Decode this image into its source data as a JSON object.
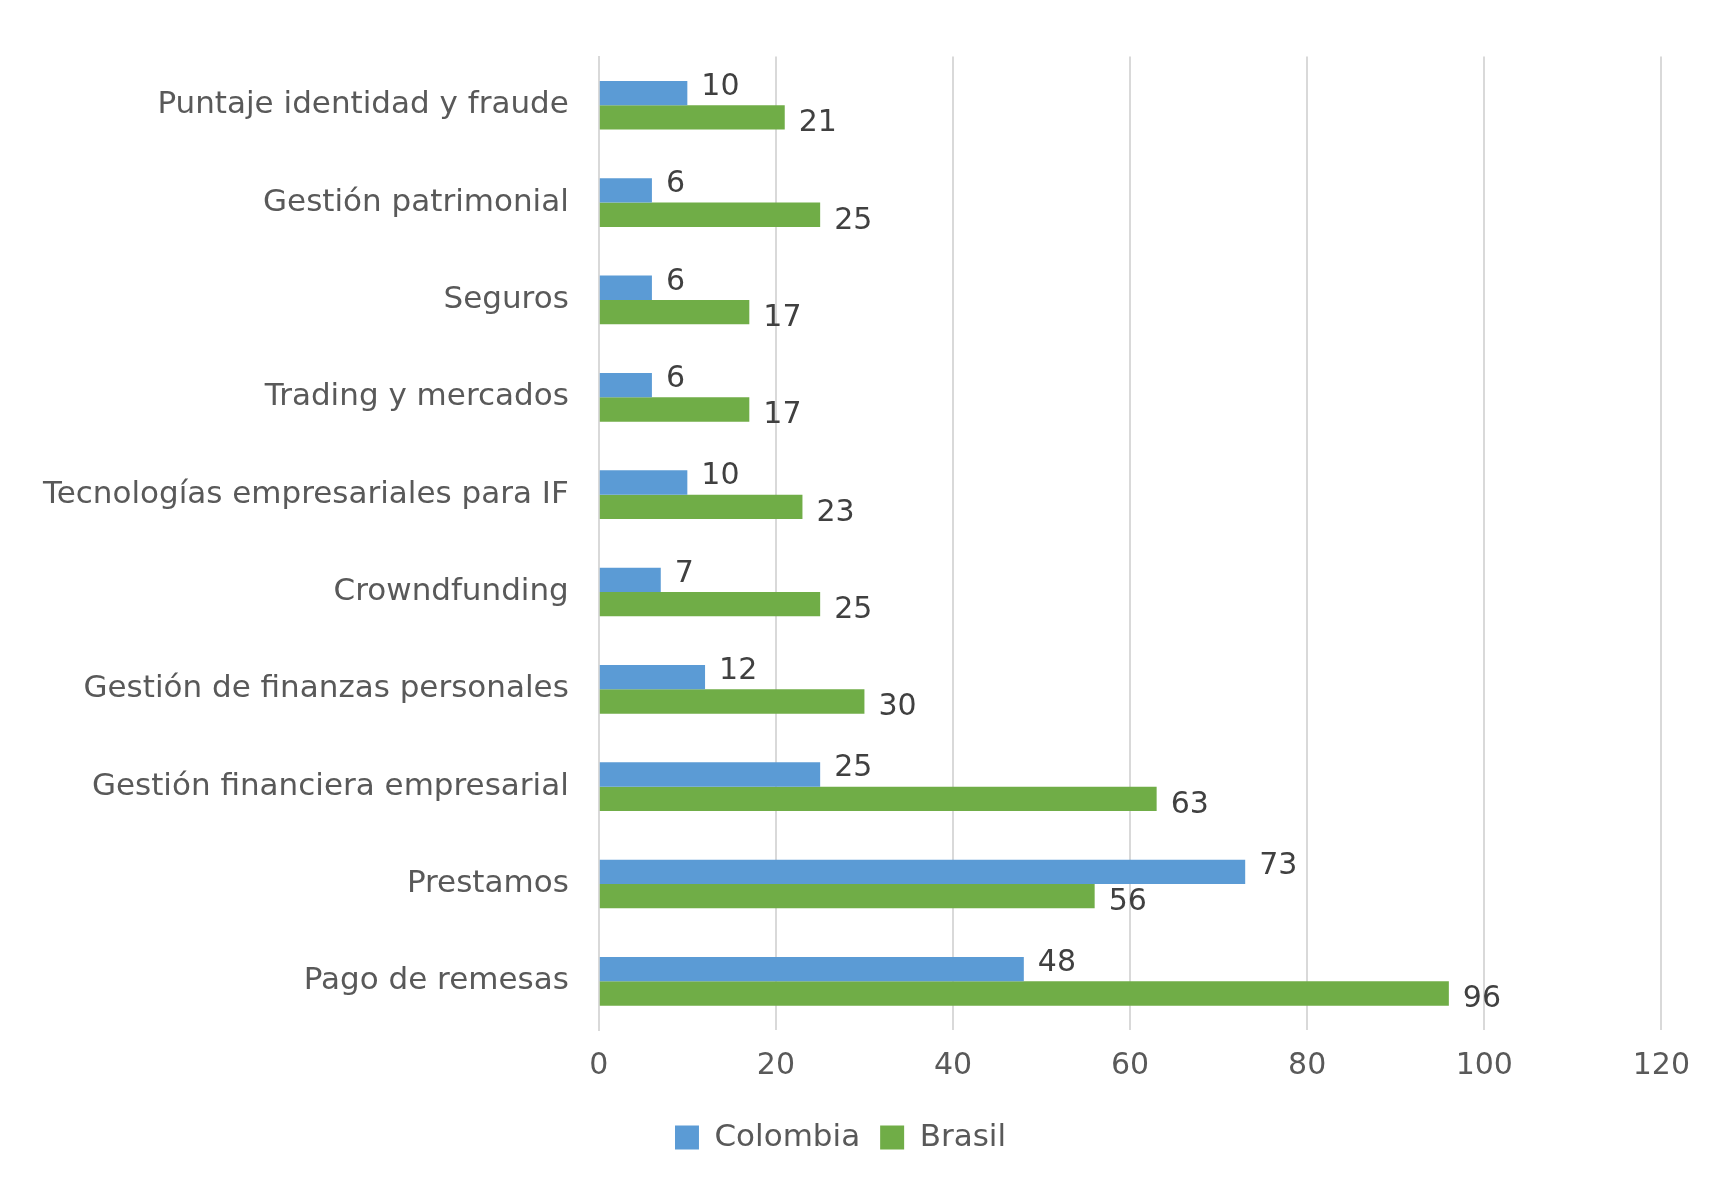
{
  "chart_data": {
    "type": "bar",
    "orientation": "horizontal",
    "categories": [
      "Puntaje identidad y fraude",
      "Gestión patrimonial",
      "Seguros",
      "Trading y mercados",
      "Tecnologías empresariales para IF",
      "Crowndfunding",
      "Gestión de finanzas personales",
      "Gestión financiera empresarial",
      "Prestamos",
      "Pago de remesas"
    ],
    "series": [
      {
        "name": "Colombia",
        "color": "#5b9bd5",
        "values": [
          10,
          6,
          6,
          6,
          10,
          7,
          12,
          25,
          73,
          48
        ]
      },
      {
        "name": "Brasil",
        "color": "#70ad47",
        "values": [
          21,
          25,
          17,
          17,
          23,
          25,
          30,
          63,
          56,
          96
        ]
      }
    ],
    "xlim": [
      0,
      120
    ],
    "xticks": [
      0,
      20,
      40,
      60,
      80,
      100,
      120
    ],
    "grid": "x",
    "legend": "bottom",
    "data_labels": true
  }
}
